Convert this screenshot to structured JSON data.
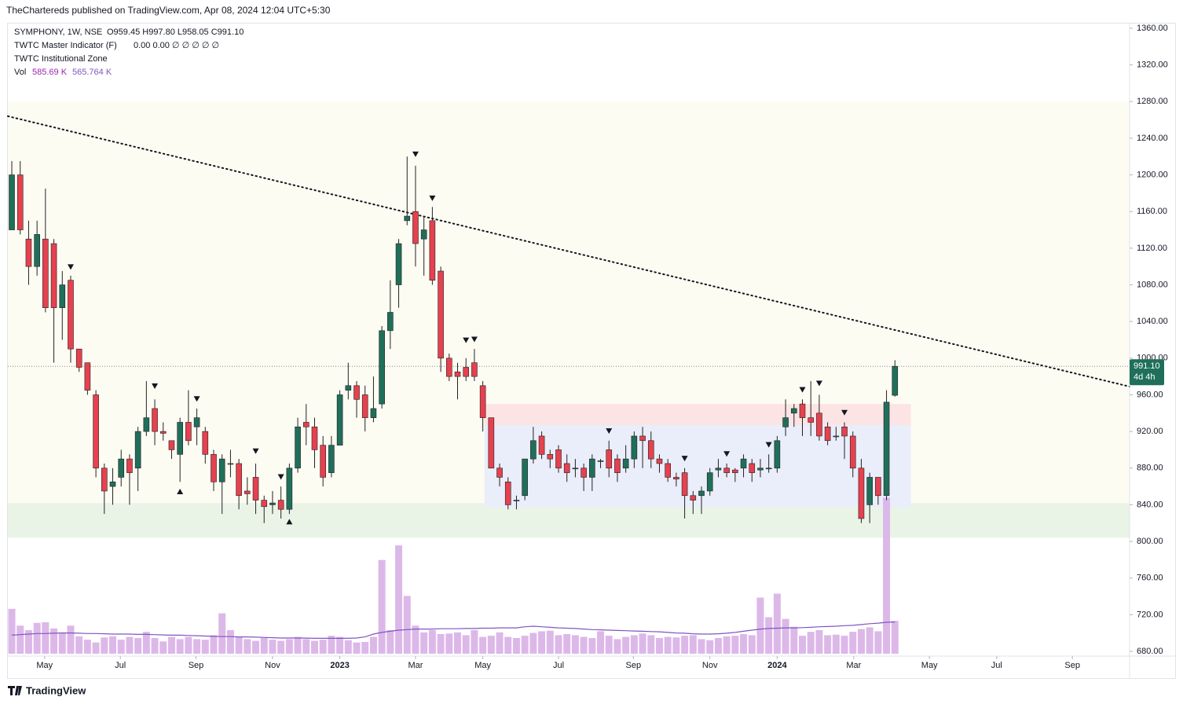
{
  "header": {
    "publisher": "TheChartereds published on TradingView.com, Apr 08, 2024 12:04 UTC+5:30"
  },
  "legend": {
    "symbol": "SYMPHONY, 1W, NSE",
    "ohlc": "O959.45  H997.80  L958.05  C991.10",
    "indicator1": "TWTC Master Indicator (F)",
    "indicator1_values": "0.00  0.00  ∅  ∅  ∅  ∅  ∅",
    "indicator2": "TWTC Institutional Zone",
    "vol_name": "Vol",
    "vol_value": "585.69 K",
    "vol_ma": "565.764 K"
  },
  "footer": {
    "brand": "TradingView"
  },
  "chart_data": {
    "type": "candlestick",
    "x": [
      0,
      1,
      2,
      3,
      4,
      5,
      6,
      7,
      8,
      9,
      10,
      11,
      12,
      13,
      14,
      15,
      16,
      17,
      18,
      19,
      20,
      21,
      22,
      23,
      24,
      25,
      26,
      27,
      28,
      29,
      30,
      31,
      32,
      33,
      34,
      35,
      36,
      37,
      38,
      39,
      40,
      41,
      42,
      43,
      44,
      45,
      46,
      47,
      48,
      49,
      50,
      51,
      52,
      53,
      54,
      55,
      56,
      57,
      58,
      59,
      60,
      61,
      62,
      63,
      64,
      65,
      66,
      67,
      68,
      69,
      70,
      71,
      72,
      73,
      74,
      75,
      76,
      77,
      78,
      79,
      80,
      81,
      82,
      83,
      84,
      85,
      86,
      87,
      88,
      89,
      90,
      91,
      92,
      93,
      94,
      95,
      96,
      97,
      98,
      99,
      100,
      101,
      102,
      103,
      104,
      105
    ],
    "open": [
      1140,
      1200,
      1130,
      1100,
      1130,
      1125,
      1055,
      1085,
      1010,
      995,
      960,
      880,
      860,
      870,
      890,
      880,
      920,
      945,
      920,
      910,
      895,
      930,
      925,
      920,
      895,
      865,
      885,
      885,
      855,
      870,
      845,
      840,
      845,
      835,
      880,
      930,
      925,
      905,
      875,
      905,
      965,
      970,
      960,
      935,
      950,
      1030,
      1080,
      1150,
      1160,
      1130,
      1150,
      1095,
      1000,
      985,
      990,
      995,
      970,
      935,
      880,
      865,
      845,
      850,
      890,
      915,
      895,
      900,
      885,
      880,
      880,
      870,
      888,
      900,
      890,
      880,
      890,
      915,
      910,
      890,
      885,
      870,
      875,
      850,
      850,
      855,
      878,
      880,
      878,
      880,
      885,
      878,
      880,
      880,
      925,
      940,
      950,
      935,
      940,
      925,
      915,
      925,
      915,
      880,
      840,
      870,
      850,
      959.45
    ],
    "high": [
      1215,
      1215,
      1150,
      1150,
      1185,
      1130,
      1095,
      1090,
      1010,
      995,
      965,
      885,
      880,
      900,
      895,
      925,
      975,
      955,
      930,
      910,
      935,
      965,
      945,
      925,
      900,
      895,
      900,
      890,
      870,
      885,
      850,
      855,
      860,
      885,
      935,
      950,
      935,
      915,
      915,
      965,
      995,
      975,
      970,
      980,
      1035,
      1085,
      1130,
      1220,
      1210,
      1155,
      1165,
      1100,
      1005,
      995,
      1000,
      1010,
      975,
      935,
      885,
      870,
      850,
      890,
      925,
      920,
      900,
      905,
      895,
      890,
      885,
      895,
      890,
      910,
      895,
      905,
      920,
      925,
      920,
      895,
      890,
      875,
      880,
      855,
      860,
      880,
      890,
      885,
      880,
      895,
      890,
      890,
      895,
      915,
      955,
      950,
      955,
      975,
      960,
      930,
      925,
      930,
      920,
      890,
      875,
      870,
      965,
      997.8
    ],
    "low": [
      1140,
      1135,
      1080,
      1090,
      1050,
      995,
      1020,
      995,
      985,
      960,
      870,
      830,
      840,
      860,
      840,
      855,
      915,
      905,
      910,
      890,
      865,
      905,
      905,
      885,
      855,
      830,
      870,
      835,
      840,
      830,
      820,
      830,
      825,
      830,
      875,
      905,
      880,
      860,
      870,
      905,
      955,
      935,
      920,
      930,
      945,
      1010,
      1055,
      1145,
      1100,
      1090,
      1080,
      985,
      975,
      955,
      975,
      975,
      920,
      880,
      860,
      835,
      835,
      845,
      885,
      890,
      880,
      875,
      865,
      870,
      855,
      855,
      880,
      870,
      865,
      875,
      880,
      880,
      880,
      875,
      865,
      860,
      825,
      830,
      830,
      850,
      870,
      870,
      865,
      870,
      865,
      870,
      875,
      875,
      915,
      925,
      915,
      915,
      910,
      905,
      910,
      890,
      870,
      820,
      820,
      840,
      845,
      958.05
    ],
    "close": [
      1200,
      1140,
      1100,
      1135,
      1055,
      1055,
      1080,
      1010,
      990,
      965,
      880,
      855,
      865,
      890,
      875,
      920,
      935,
      920,
      918,
      900,
      930,
      910,
      935,
      895,
      865,
      890,
      885,
      850,
      852,
      845,
      838,
      842,
      835,
      880,
      925,
      925,
      900,
      870,
      905,
      960,
      970,
      955,
      935,
      945,
      1030,
      1050,
      1125,
      1155,
      1125,
      1140,
      1085,
      1000,
      980,
      980,
      980,
      980,
      935,
      880,
      870,
      840,
      845,
      890,
      910,
      895,
      890,
      880,
      875,
      880,
      870,
      890,
      888,
      880,
      875,
      890,
      915,
      910,
      890,
      885,
      870,
      868,
      850,
      845,
      855,
      875,
      880,
      875,
      875,
      890,
      875,
      880,
      880,
      910,
      935,
      945,
      935,
      930,
      915,
      910,
      915,
      915,
      880,
      825,
      870,
      850,
      952,
      991.1
    ],
    "volume": [
      800,
      500,
      420,
      550,
      560,
      450,
      380,
      500,
      310,
      250,
      200,
      290,
      310,
      250,
      300,
      280,
      390,
      280,
      220,
      300,
      260,
      300,
      260,
      250,
      330,
      720,
      420,
      300,
      260,
      230,
      280,
      250,
      230,
      260,
      300,
      260,
      230,
      250,
      320,
      300,
      240,
      200,
      210,
      300,
      1670,
      420,
      1930,
      1030,
      500,
      380,
      420,
      350,
      360,
      380,
      330,
      420,
      300,
      320,
      380,
      300,
      280,
      320,
      370,
      400,
      410,
      330,
      350,
      330,
      300,
      280,
      400,
      320,
      260,
      300,
      330,
      360,
      330,
      280,
      300,
      290,
      320,
      330,
      260,
      240,
      280,
      310,
      320,
      350,
      330,
      1000,
      650,
      1070,
      620,
      480,
      320,
      390,
      420,
      330,
      340,
      320,
      390,
      440,
      470,
      400,
      2780,
      585.69
    ],
    "volume_ma": [
      330,
      340,
      350,
      360,
      360,
      365,
      370,
      370,
      365,
      360,
      360,
      355,
      350,
      350,
      350,
      345,
      345,
      340,
      335,
      330,
      330,
      325,
      320,
      315,
      310,
      305,
      305,
      300,
      300,
      295,
      290,
      285,
      280,
      280,
      280,
      278,
      275,
      275,
      275,
      275,
      275,
      280,
      300,
      350,
      380,
      400,
      420,
      430,
      440,
      440,
      440,
      445,
      445,
      445,
      450,
      450,
      455,
      455,
      460,
      460,
      460,
      480,
      490,
      480,
      470,
      460,
      455,
      450,
      440,
      430,
      425,
      420,
      415,
      410,
      405,
      400,
      395,
      390,
      380,
      370,
      365,
      355,
      350,
      350,
      355,
      365,
      380,
      400,
      420,
      440,
      450,
      455,
      460,
      460,
      465,
      470,
      480,
      485,
      490,
      500,
      505,
      520,
      535,
      545,
      560,
      565.764
    ],
    "volume_ylim": [
      0,
      2800
    ],
    "xlim": [
      -0.47,
      132.9
    ],
    "ylim": [
      674.9,
      1365.1
    ],
    "yticks": [
      {
        "value": 680,
        "label": "680.00"
      },
      {
        "value": 720,
        "label": "720.00"
      },
      {
        "value": 760,
        "label": "760.00"
      },
      {
        "value": 800,
        "label": "800.00"
      },
      {
        "value": 840,
        "label": "840.00"
      },
      {
        "value": 880,
        "label": "880.00"
      },
      {
        "value": 920,
        "label": "920.00"
      },
      {
        "value": 960,
        "label": "960.00"
      },
      {
        "value": 1000,
        "label": "1000.00"
      },
      {
        "value": 1040,
        "label": "1040.00"
      },
      {
        "value": 1080,
        "label": "1080.00"
      },
      {
        "value": 1120,
        "label": "1120.00"
      },
      {
        "value": 1160,
        "label": "1160.00"
      },
      {
        "value": 1200,
        "label": "1200.00"
      },
      {
        "value": 1240,
        "label": "1240.00"
      },
      {
        "value": 1280,
        "label": "1280.00"
      },
      {
        "value": 1320,
        "label": "1320.00"
      },
      {
        "value": 1360,
        "label": "1360.00"
      }
    ],
    "xticks": [
      {
        "value": 3.9,
        "label": "May"
      },
      {
        "value": 12.9,
        "label": "Jul"
      },
      {
        "value": 21.9,
        "label": "Sep"
      },
      {
        "value": 31.0,
        "label": "Nov"
      },
      {
        "value": 39.0,
        "label": "2023"
      },
      {
        "value": 48.0,
        "label": "Mar"
      },
      {
        "value": 56.0,
        "label": "May"
      },
      {
        "value": 65.0,
        "label": "Jul"
      },
      {
        "value": 73.9,
        "label": "Sep"
      },
      {
        "value": 83.0,
        "label": "Nov"
      },
      {
        "value": 91.0,
        "label": "2024"
      },
      {
        "value": 100.1,
        "label": "Mar"
      },
      {
        "value": 109.1,
        "label": "May"
      },
      {
        "value": 117.1,
        "label": "Jul"
      },
      {
        "value": 126.1,
        "label": "Sep"
      }
    ],
    "up_color": "#1f6f5a",
    "down_color": "#e5414f",
    "wick_color": "#222222",
    "volume_color": "#dcb8e8",
    "volume_ma_color": "#7e57c2",
    "trendline": {
      "x": [
        -0.47,
        132.9
      ],
      "y": [
        1264,
        969
      ]
    },
    "zones": [
      {
        "x0": -0.47,
        "x1": 132.9,
        "y0": 842,
        "y1": 1280,
        "color": "#fdfcf3"
      },
      {
        "x0": -0.47,
        "x1": 132.9,
        "y0": 804,
        "y1": 842,
        "color": "#e9f4e7"
      },
      {
        "x0": 56.2,
        "x1": 106.9,
        "y0": 927,
        "y1": 950,
        "color": "#fce4e4"
      },
      {
        "x0": 56.2,
        "x1": 106.9,
        "y0": 837,
        "y1": 927,
        "color": "#eaedfa"
      }
    ],
    "down_markers": {
      "x": [
        7,
        17,
        22,
        29,
        32,
        48,
        50,
        54,
        55,
        71,
        80,
        85,
        90,
        94,
        96,
        99
      ],
      "y": [
        1099,
        969,
        955,
        898,
        870,
        1222,
        1174,
        1019,
        1020,
        920,
        890,
        895,
        905,
        965,
        972,
        940
      ]
    },
    "up_markers": {
      "x": [
        20,
        33
      ],
      "y": [
        855,
        822
      ]
    },
    "last_price": {
      "value": 991.1,
      "label": "991.10",
      "countdown": "4d 4h"
    }
  }
}
